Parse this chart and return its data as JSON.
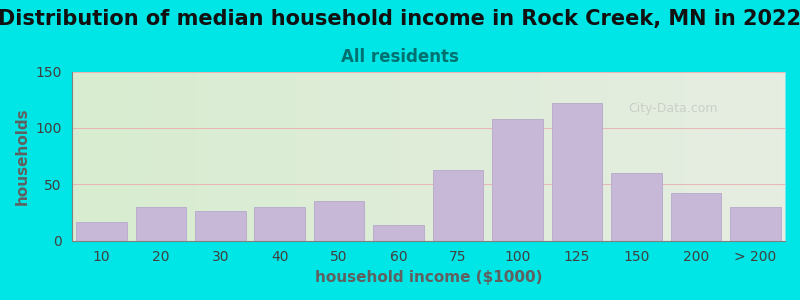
{
  "title": "Distribution of median household income in Rock Creek, MN in 2022",
  "subtitle": "All residents",
  "xlabel": "household income ($1000)",
  "ylabel": "households",
  "bar_labels": [
    "10",
    "20",
    "30",
    "40",
    "50",
    "60",
    "75",
    "100",
    "125",
    "150",
    "200",
    "> 200"
  ],
  "bar_values": [
    17,
    30,
    26,
    30,
    35,
    14,
    63,
    108,
    122,
    60,
    42,
    30
  ],
  "bar_color": "#c8b8d8",
  "bar_edge_color": "#b0a0c8",
  "ylim": [
    0,
    150
  ],
  "yticks": [
    0,
    50,
    100,
    150
  ],
  "background_outer": "#00e5e5",
  "background_inner_left": "#d8ecd0",
  "background_inner_right": "#f0eeee",
  "grid_color": "#e8b8b8",
  "title_fontsize": 15,
  "subtitle_fontsize": 12,
  "label_fontsize": 11,
  "tick_fontsize": 10,
  "title_color": "#111111",
  "subtitle_color": "#007070",
  "axis_label_color": "#606060",
  "tick_color": "#404040",
  "watermark_text": "City-Data.com"
}
